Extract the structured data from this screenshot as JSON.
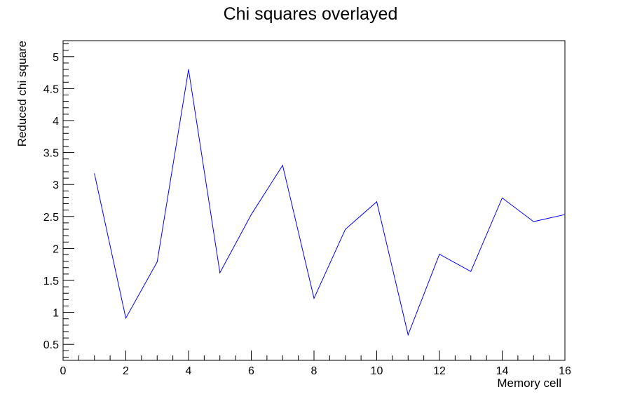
{
  "chart_data": {
    "type": "line",
    "title": "Chi squares overlayed",
    "xlabel": "Memory cell",
    "ylabel": "Reduced chi square",
    "xlim": [
      0,
      16
    ],
    "ylim": [
      0.25,
      5.25
    ],
    "x_ticks": [
      0,
      2,
      4,
      6,
      8,
      10,
      12,
      14,
      16
    ],
    "y_ticks": [
      0.5,
      1,
      1.5,
      2,
      2.5,
      3,
      3.5,
      4,
      4.5,
      5
    ],
    "x_tick_labels": [
      "0",
      "2",
      "4",
      "6",
      "8",
      "10",
      "12",
      "14",
      "16"
    ],
    "y_tick_labels": [
      "0.5",
      "1",
      "1.5",
      "2",
      "2.5",
      "3",
      "3.5",
      "4",
      "4.5",
      "5"
    ],
    "grid": false,
    "series": [
      {
        "color": "#0000ff",
        "x": [
          1,
          2,
          3,
          4,
          5,
          6,
          7,
          8,
          9,
          10,
          11,
          12,
          13,
          14,
          15,
          16
        ],
        "y": [
          3.17,
          0.91,
          1.79,
          4.8,
          1.62,
          2.53,
          3.3,
          1.22,
          2.3,
          2.73,
          0.65,
          1.91,
          1.64,
          2.79,
          2.42,
          2.53
        ]
      }
    ]
  }
}
